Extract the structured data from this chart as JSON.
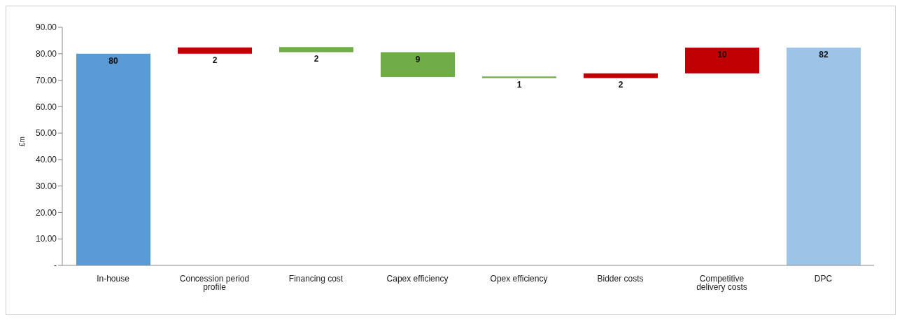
{
  "chart_data": {
    "type": "bar",
    "ylabel": "£m",
    "categories": [
      "In-house",
      "Concession period profile",
      "Financing cost",
      "Capex efficiency",
      "Opex efficiency",
      "Bidder costs",
      "Competitive delivery costs",
      "DPC"
    ],
    "values": [
      80,
      2.4,
      1.9,
      9.4,
      0.6,
      1.8,
      9.7,
      82.3
    ],
    "base": [
      0,
      80,
      80.6,
      71.2,
      70.8,
      70.8,
      72.6,
      0
    ],
    "colors": [
      "#5b9bd5",
      "#c00000",
      "#70ad47",
      "#70ad47",
      "#70ad47",
      "#c00000",
      "#c00000",
      "#9dc3e6"
    ],
    "value_labels": [
      "80",
      "2",
      "2",
      "9",
      "1",
      "2",
      "10",
      "82"
    ],
    "ylim": [
      0,
      90
    ],
    "yticks": [
      {
        "value": 0,
        "label": "-"
      },
      {
        "value": 10,
        "label": "10.00"
      },
      {
        "value": 20,
        "label": "20.00"
      },
      {
        "value": 30,
        "label": "30.00"
      },
      {
        "value": 40,
        "label": "40.00"
      },
      {
        "value": 50,
        "label": "50.00"
      },
      {
        "value": 60,
        "label": "60.00"
      },
      {
        "value": 70,
        "label": "70.00"
      },
      {
        "value": 80,
        "label": "80.00"
      },
      {
        "value": 90,
        "label": "90.00"
      }
    ],
    "grid": false,
    "legend": false
  }
}
